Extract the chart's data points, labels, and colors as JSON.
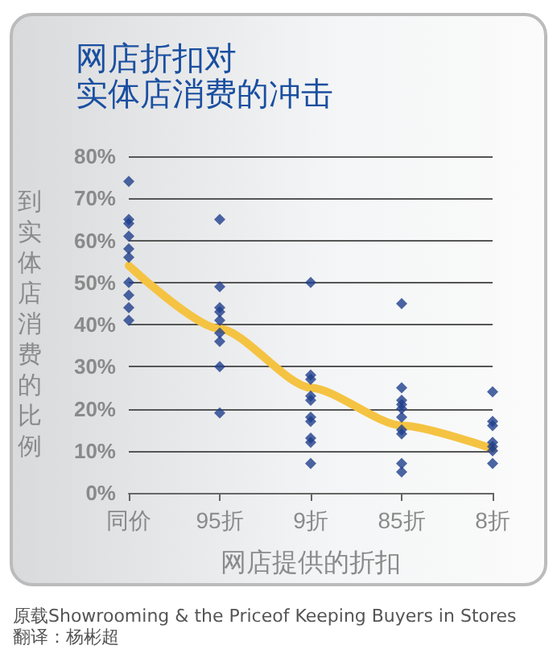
{
  "chart_data": {
    "type": "scatter",
    "title": "网店折扣对实体店消费的冲击",
    "xlabel": "网店提供的折扣",
    "ylabel": "到实体店消费的比例",
    "categories": [
      "同价",
      "95折",
      "9折",
      "85折",
      "8折"
    ],
    "series": [
      {
        "type": "scatter",
        "color": "#1f3f8c",
        "marker": "diamond",
        "x": [
          "同价",
          "同价",
          "同价",
          "同价",
          "同价",
          "同价",
          "同价",
          "同价",
          "同价",
          "同价",
          "95折",
          "95折",
          "95折",
          "95折",
          "95折",
          "95折",
          "95折",
          "95折",
          "95折",
          "9折",
          "9折",
          "9折",
          "9折",
          "9折",
          "9折",
          "9折",
          "9折",
          "9折",
          "9折",
          "85折",
          "85折",
          "85折",
          "85折",
          "85折",
          "85折",
          "85折",
          "85折",
          "85折",
          "85折",
          "8折",
          "8折",
          "8折",
          "8折",
          "8折",
          "8折",
          "8折"
        ],
        "values": [
          74,
          65,
          64,
          61,
          58,
          56,
          50,
          47,
          44,
          41,
          65,
          49,
          44,
          43,
          41,
          38,
          36,
          30,
          19,
          50,
          28,
          27,
          23,
          22,
          18,
          17,
          13,
          12,
          7,
          45,
          25,
          22,
          21,
          20,
          18,
          15,
          14,
          7,
          5,
          24,
          17,
          16,
          12,
          11,
          10,
          7
        ]
      },
      {
        "type": "line",
        "color": "#f5c342",
        "marker": "none",
        "x": [
          "同价",
          "95折",
          "9折",
          "85折",
          "8折"
        ],
        "values": [
          54,
          39,
          25,
          16,
          10.5
        ]
      }
    ],
    "ylim": [
      0,
      80
    ],
    "yticks": [
      {
        "value": 0,
        "label": "0%"
      },
      {
        "value": 10,
        "label": "10%"
      },
      {
        "value": 20,
        "label": "20%"
      },
      {
        "value": 30,
        "label": "30%"
      },
      {
        "value": 40,
        "label": "40%"
      },
      {
        "value": 50,
        "label": "50%"
      },
      {
        "value": 60,
        "label": "60%"
      },
      {
        "value": 70,
        "label": "70%"
      },
      {
        "value": 80,
        "label": "80%"
      }
    ],
    "grid": "y",
    "annotations": [
      "原载Showrooming & the Priceof Keeping Buyers in Stores",
      "翻译：杨彬超"
    ]
  }
}
